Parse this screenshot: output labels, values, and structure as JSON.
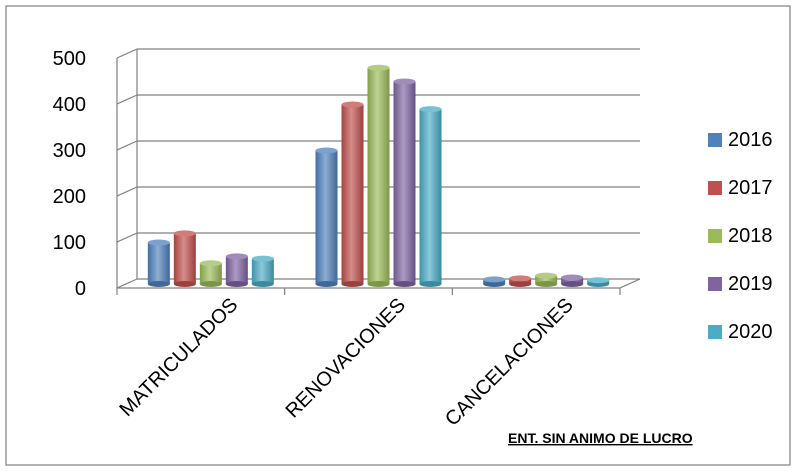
{
  "chart_data": {
    "type": "bar",
    "categories": [
      "MATRICULADOS",
      "RENOVACIONES",
      "CANCELACIONES"
    ],
    "series": [
      {
        "name": "2016",
        "values": [
          90,
          290,
          10
        ],
        "color": "#4F81BD"
      },
      {
        "name": "2017",
        "values": [
          110,
          390,
          12
        ],
        "color": "#C0504D"
      },
      {
        "name": "2018",
        "values": [
          45,
          470,
          18
        ],
        "color": "#9BBB59"
      },
      {
        "name": "2019",
        "values": [
          60,
          440,
          14
        ],
        "color": "#8064A2"
      },
      {
        "name": "2020",
        "values": [
          55,
          380,
          8
        ],
        "color": "#4BACC6"
      }
    ],
    "yticks": [
      "0",
      "100",
      "200",
      "300",
      "400",
      "500"
    ],
    "ylim": [
      0,
      500
    ],
    "legend_position": "right",
    "grid": true,
    "annotation": "ENT. SIN ANIMO DE LUCRO"
  }
}
